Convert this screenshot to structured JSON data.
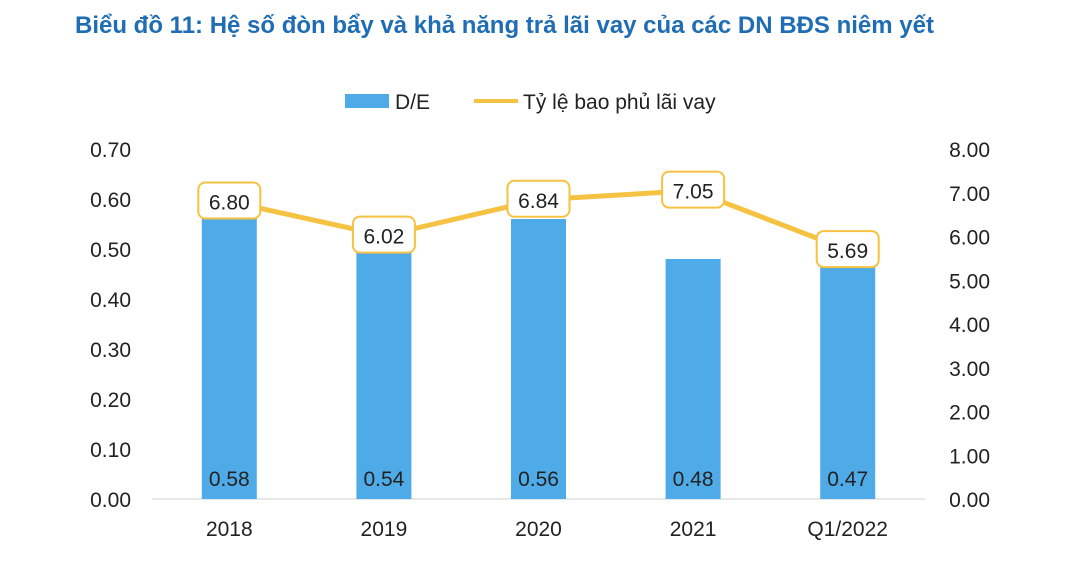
{
  "chart_data": {
    "type": "bar+line",
    "title": "Biểu đồ 11: Hệ số đòn bẩy và khả năng trả lãi vay của các DN BĐS niêm yết",
    "categories": [
      "2018",
      "2019",
      "2020",
      "2021",
      "Q1/2022"
    ],
    "series": [
      {
        "name": "D/E",
        "type": "bar",
        "axis": "left",
        "values": [
          0.58,
          0.54,
          0.56,
          0.48,
          0.47
        ],
        "labels": [
          "0.58",
          "0.54",
          "0.56",
          "0.48",
          "0.47"
        ],
        "color": "#4fabe8"
      },
      {
        "name": "Tỷ lệ bao phủ lãi vay",
        "type": "line",
        "axis": "right",
        "values": [
          6.8,
          6.02,
          6.84,
          7.05,
          5.69
        ],
        "labels": [
          "6.80",
          "6.02",
          "6.84",
          "7.05",
          "5.69"
        ],
        "color": "#f5c242"
      }
    ],
    "left_axis": {
      "range": [
        0,
        0.7
      ],
      "ticks": [
        "0.00",
        "0.10",
        "0.20",
        "0.30",
        "0.40",
        "0.50",
        "0.60",
        "0.70"
      ]
    },
    "right_axis": {
      "range": [
        0,
        8
      ],
      "ticks": [
        "0.00",
        "1.00",
        "2.00",
        "3.00",
        "4.00",
        "5.00",
        "6.00",
        "7.00",
        "8.00"
      ]
    },
    "grid": false,
    "legend": "top-center"
  }
}
